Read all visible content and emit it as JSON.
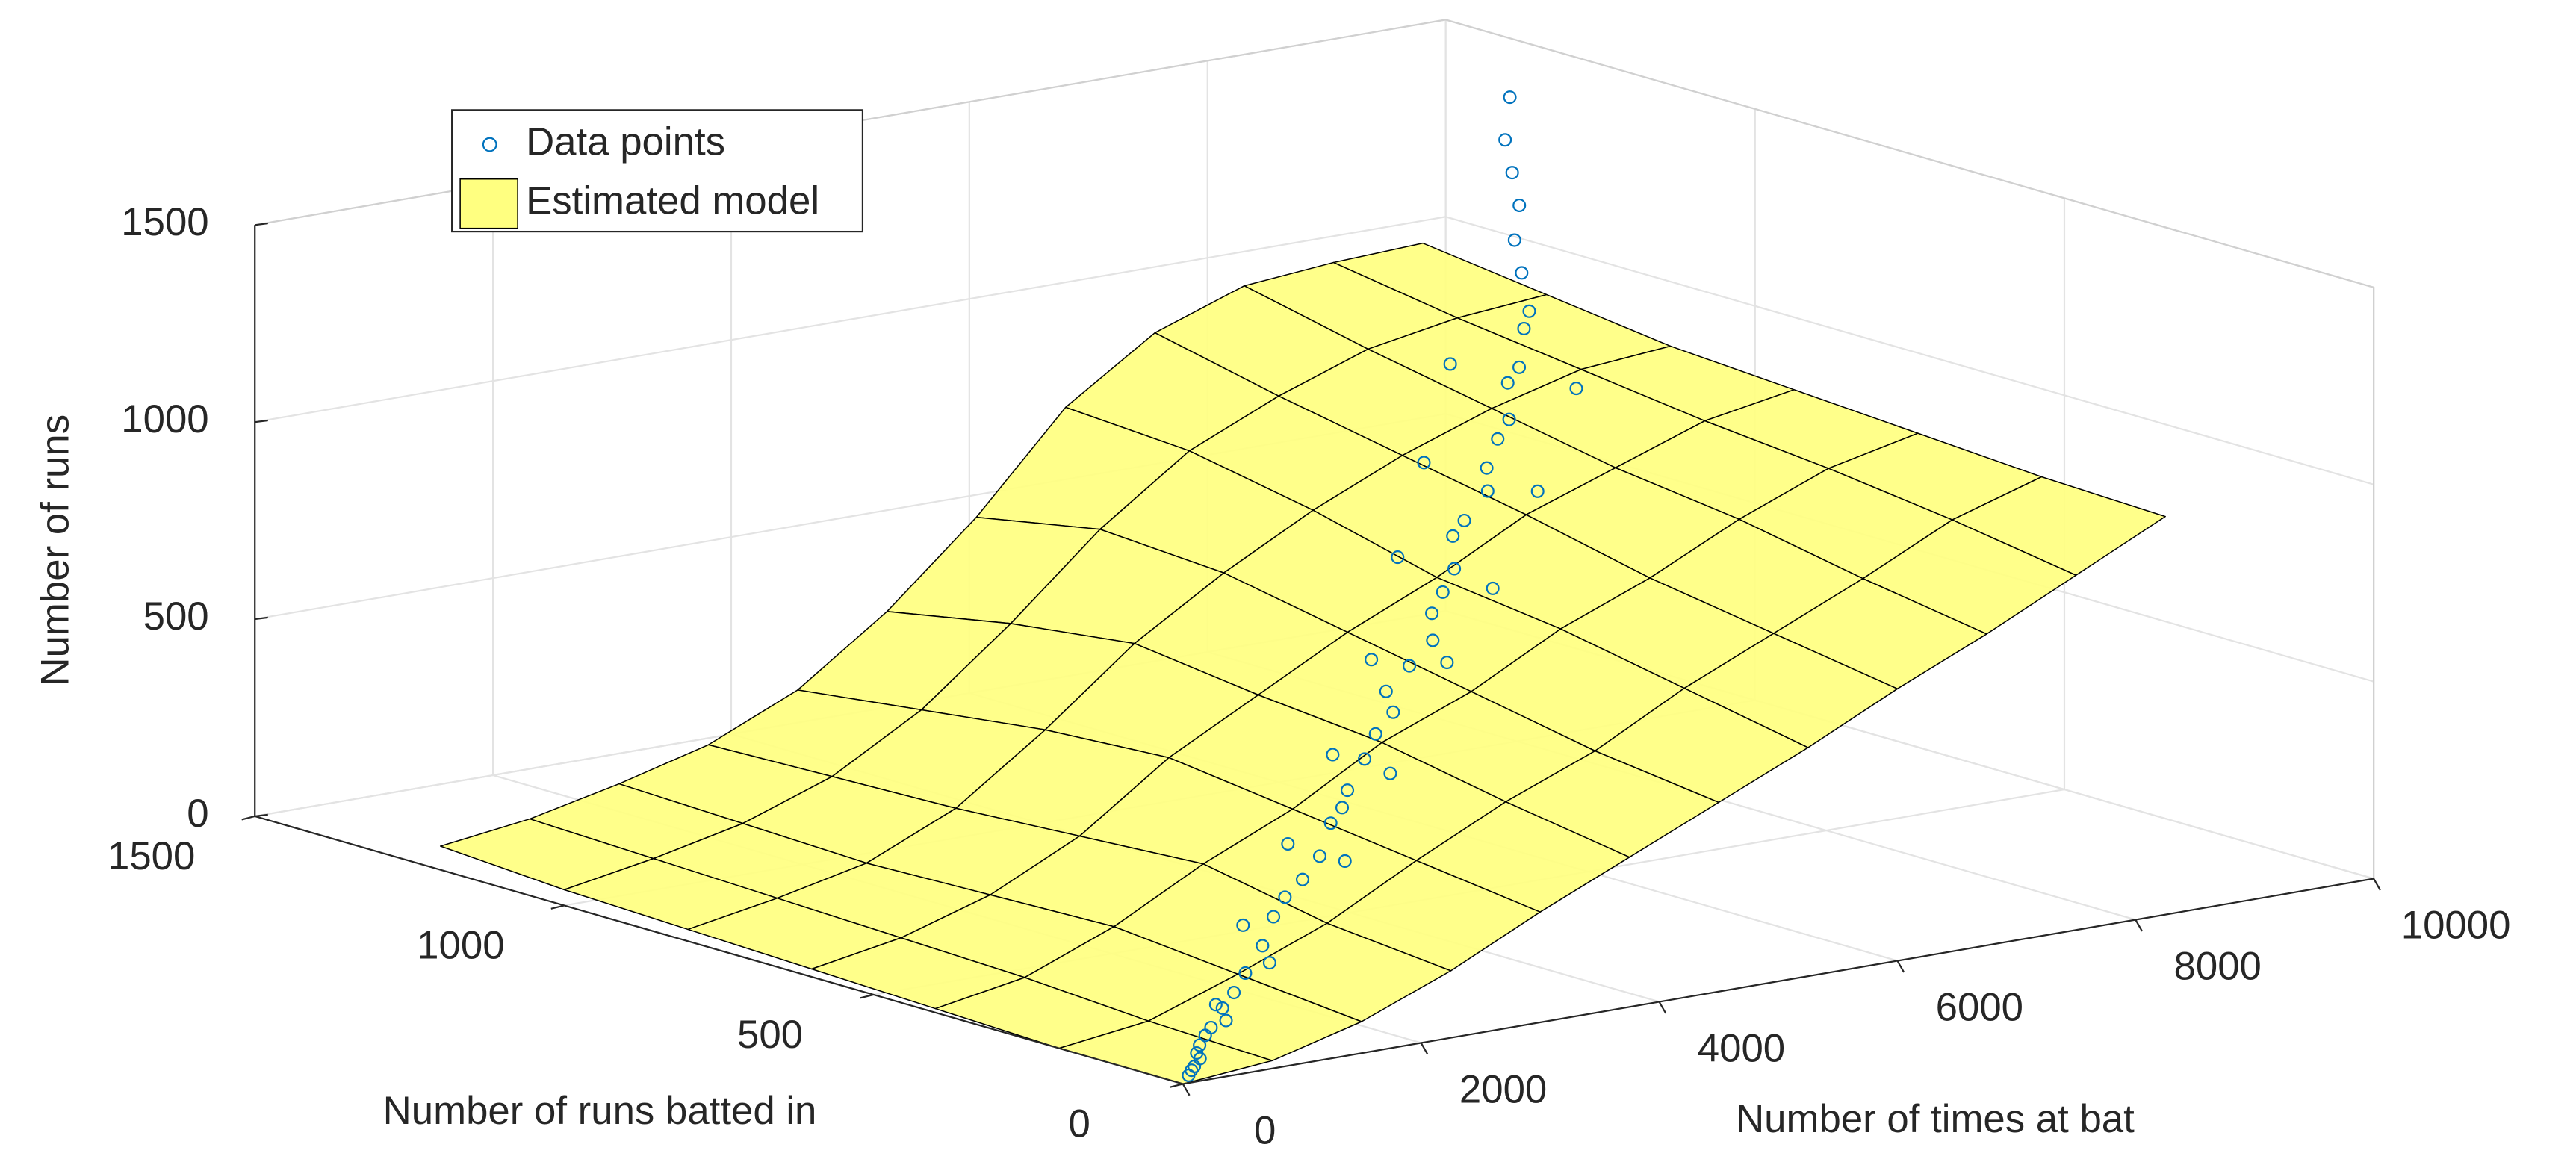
{
  "chart_data": {
    "type": "surface3d",
    "xlabel": "Number of times at bat",
    "ylabel": "Number of runs batted in",
    "zlabel": "Number of runs",
    "xlim": [
      0,
      10000
    ],
    "ylim": [
      0,
      1500
    ],
    "zlim": [
      0,
      1500
    ],
    "xticks": [
      0,
      2000,
      4000,
      6000,
      8000,
      10000
    ],
    "yticks": [
      0,
      500,
      1000,
      1500
    ],
    "zticks": [
      0,
      500,
      1000,
      1500
    ],
    "grid": true,
    "legend": "upper left",
    "series": [
      {
        "name": "Estimated model",
        "type": "surface",
        "color": "#ffff80",
        "x": [
          0,
          750,
          1500,
          2250,
          3000,
          3750,
          4500,
          5250,
          6000,
          6750,
          7500,
          8250
        ],
        "y": [
          0,
          200,
          400,
          600,
          800,
          1000,
          1200
        ],
        "values": [
          [
            0,
            20,
            80,
            170,
            280,
            380,
            480,
            580,
            690,
            790,
            900,
            1010
          ],
          [
            0,
            30,
            110,
            200,
            320,
            430,
            520,
            640,
            740,
            840,
            950,
            1020
          ],
          [
            10,
            50,
            140,
            260,
            360,
            490,
            580,
            700,
            790,
            900,
            990,
            1040
          ],
          [
            20,
            60,
            130,
            240,
            400,
            520,
            640,
            740,
            860,
            940,
            1020,
            1060
          ],
          [
            30,
            70,
            120,
            220,
            380,
            560,
            700,
            820,
            920,
            1000,
            1060,
            1080
          ],
          [
            40,
            80,
            130,
            210,
            340,
            520,
            720,
            880,
            980,
            1060,
            1100,
            1120
          ],
          [
            60,
            90,
            140,
            200,
            300,
            460,
            660,
            900,
            1050,
            1130,
            1150,
            1160
          ]
        ]
      },
      {
        "name": "Data points",
        "type": "scatter3d",
        "color": "#0072bd",
        "x": [
          100,
          200,
          300,
          400,
          500,
          600,
          800,
          1000,
          1200,
          1500,
          1800,
          2000,
          2200,
          2500,
          2800,
          3000,
          3200,
          3500,
          3800,
          4000,
          4200,
          4500,
          4800,
          5000,
          5300,
          5500,
          5800,
          6000,
          6300,
          6500,
          6800,
          7000,
          7300,
          7500,
          7800,
          8000,
          8300,
          8500,
          8800,
          9000,
          9200,
          9500,
          150,
          350,
          700,
          900,
          1300,
          1700,
          2400,
          2700,
          3300,
          3700,
          4400,
          4700,
          5200,
          5700,
          6200,
          6700,
          7200,
          7700
        ],
        "y": [
          10,
          20,
          30,
          50,
          60,
          70,
          90,
          110,
          130,
          160,
          200,
          220,
          230,
          260,
          300,
          320,
          350,
          380,
          420,
          430,
          480,
          500,
          520,
          560,
          600,
          620,
          680,
          700,
          720,
          760,
          800,
          820,
          880,
          900,
          950,
          980,
          1050,
          1100,
          1150,
          1200,
          1250,
          1300,
          15,
          45,
          65,
          120,
          110,
          230,
          200,
          350,
          300,
          470,
          420,
          600,
          500,
          750,
          620,
          900,
          750,
          1050
        ],
        "values": [
          12,
          25,
          35,
          55,
          70,
          80,
          110,
          130,
          160,
          200,
          240,
          270,
          300,
          330,
          380,
          400,
          420,
          470,
          500,
          540,
          560,
          600,
          640,
          680,
          700,
          740,
          780,
          800,
          850,
          880,
          920,
          950,
          1000,
          1020,
          1080,
          1100,
          1150,
          1200,
          1250,
          1300,
          1350,
          1420,
          20,
          40,
          95,
          100,
          190,
          210,
          350,
          310,
          480,
          430,
          650,
          560,
          760,
          700,
          900,
          820,
          1050,
          950
        ]
      }
    ]
  }
}
